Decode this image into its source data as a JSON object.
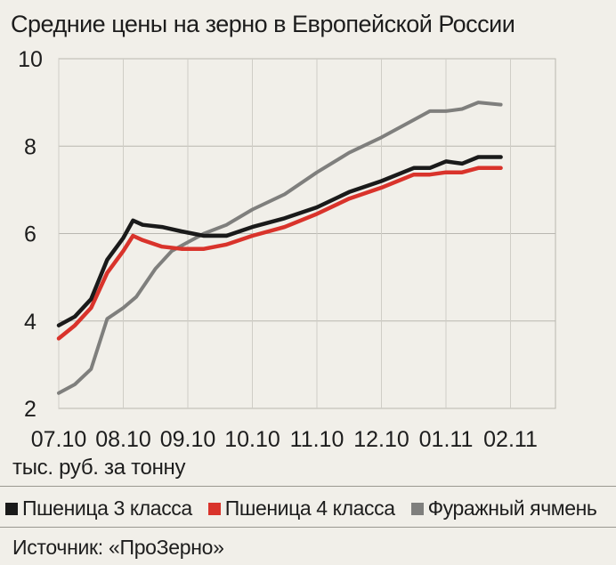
{
  "chart_data": {
    "type": "line",
    "title": "Средние цены на зерно в Европейской России",
    "ylabel": "тыс. руб. за тонну",
    "xlabel": "",
    "ylim": [
      2,
      10
    ],
    "yticks": [
      "2",
      "4",
      "6",
      "8",
      "10"
    ],
    "grid": true,
    "legend_position": "bottom",
    "xtick_labels": [
      "07.10",
      "08.10",
      "09.10",
      "10.10",
      "11.10",
      "12.10",
      "01.11",
      "02.11"
    ],
    "series": [
      {
        "name": "Пшеница 3 класса",
        "color": "#1a1a1a",
        "points": [
          [
            0.0,
            3.9
          ],
          [
            0.25,
            4.1
          ],
          [
            0.5,
            4.5
          ],
          [
            0.75,
            5.4
          ],
          [
            1.0,
            5.9
          ],
          [
            1.15,
            6.3
          ],
          [
            1.3,
            6.2
          ],
          [
            1.6,
            6.15
          ],
          [
            1.9,
            6.05
          ],
          [
            2.25,
            5.95
          ],
          [
            2.6,
            5.95
          ],
          [
            3.0,
            6.15
          ],
          [
            3.5,
            6.35
          ],
          [
            4.0,
            6.6
          ],
          [
            4.5,
            6.95
          ],
          [
            5.0,
            7.2
          ],
          [
            5.5,
            7.5
          ],
          [
            5.75,
            7.5
          ],
          [
            6.0,
            7.65
          ],
          [
            6.25,
            7.6
          ],
          [
            6.5,
            7.75
          ],
          [
            6.85,
            7.75
          ]
        ]
      },
      {
        "name": "Пшеница 4 класса",
        "color": "#d9332b",
        "points": [
          [
            0.0,
            3.6
          ],
          [
            0.25,
            3.9
          ],
          [
            0.5,
            4.3
          ],
          [
            0.75,
            5.1
          ],
          [
            1.0,
            5.6
          ],
          [
            1.15,
            5.95
          ],
          [
            1.3,
            5.85
          ],
          [
            1.6,
            5.7
          ],
          [
            1.9,
            5.65
          ],
          [
            2.25,
            5.65
          ],
          [
            2.6,
            5.75
          ],
          [
            3.0,
            5.95
          ],
          [
            3.5,
            6.15
          ],
          [
            4.0,
            6.45
          ],
          [
            4.5,
            6.8
          ],
          [
            5.0,
            7.05
          ],
          [
            5.5,
            7.35
          ],
          [
            5.75,
            7.35
          ],
          [
            6.0,
            7.4
          ],
          [
            6.25,
            7.4
          ],
          [
            6.5,
            7.5
          ],
          [
            6.85,
            7.5
          ]
        ]
      },
      {
        "name": "Фуражный ячмень",
        "color": "#7f7f7d",
        "points": [
          [
            0.0,
            2.35
          ],
          [
            0.25,
            2.55
          ],
          [
            0.5,
            2.9
          ],
          [
            0.75,
            4.05
          ],
          [
            1.0,
            4.3
          ],
          [
            1.2,
            4.55
          ],
          [
            1.5,
            5.2
          ],
          [
            1.75,
            5.6
          ],
          [
            2.0,
            5.8
          ],
          [
            2.25,
            6.0
          ],
          [
            2.6,
            6.2
          ],
          [
            3.0,
            6.55
          ],
          [
            3.5,
            6.9
          ],
          [
            4.0,
            7.4
          ],
          [
            4.5,
            7.85
          ],
          [
            5.0,
            8.2
          ],
          [
            5.5,
            8.6
          ],
          [
            5.75,
            8.8
          ],
          [
            6.0,
            8.8
          ],
          [
            6.25,
            8.85
          ],
          [
            6.5,
            9.0
          ],
          [
            6.85,
            8.95
          ]
        ]
      }
    ]
  },
  "source": "Источник: «ПроЗерно»"
}
